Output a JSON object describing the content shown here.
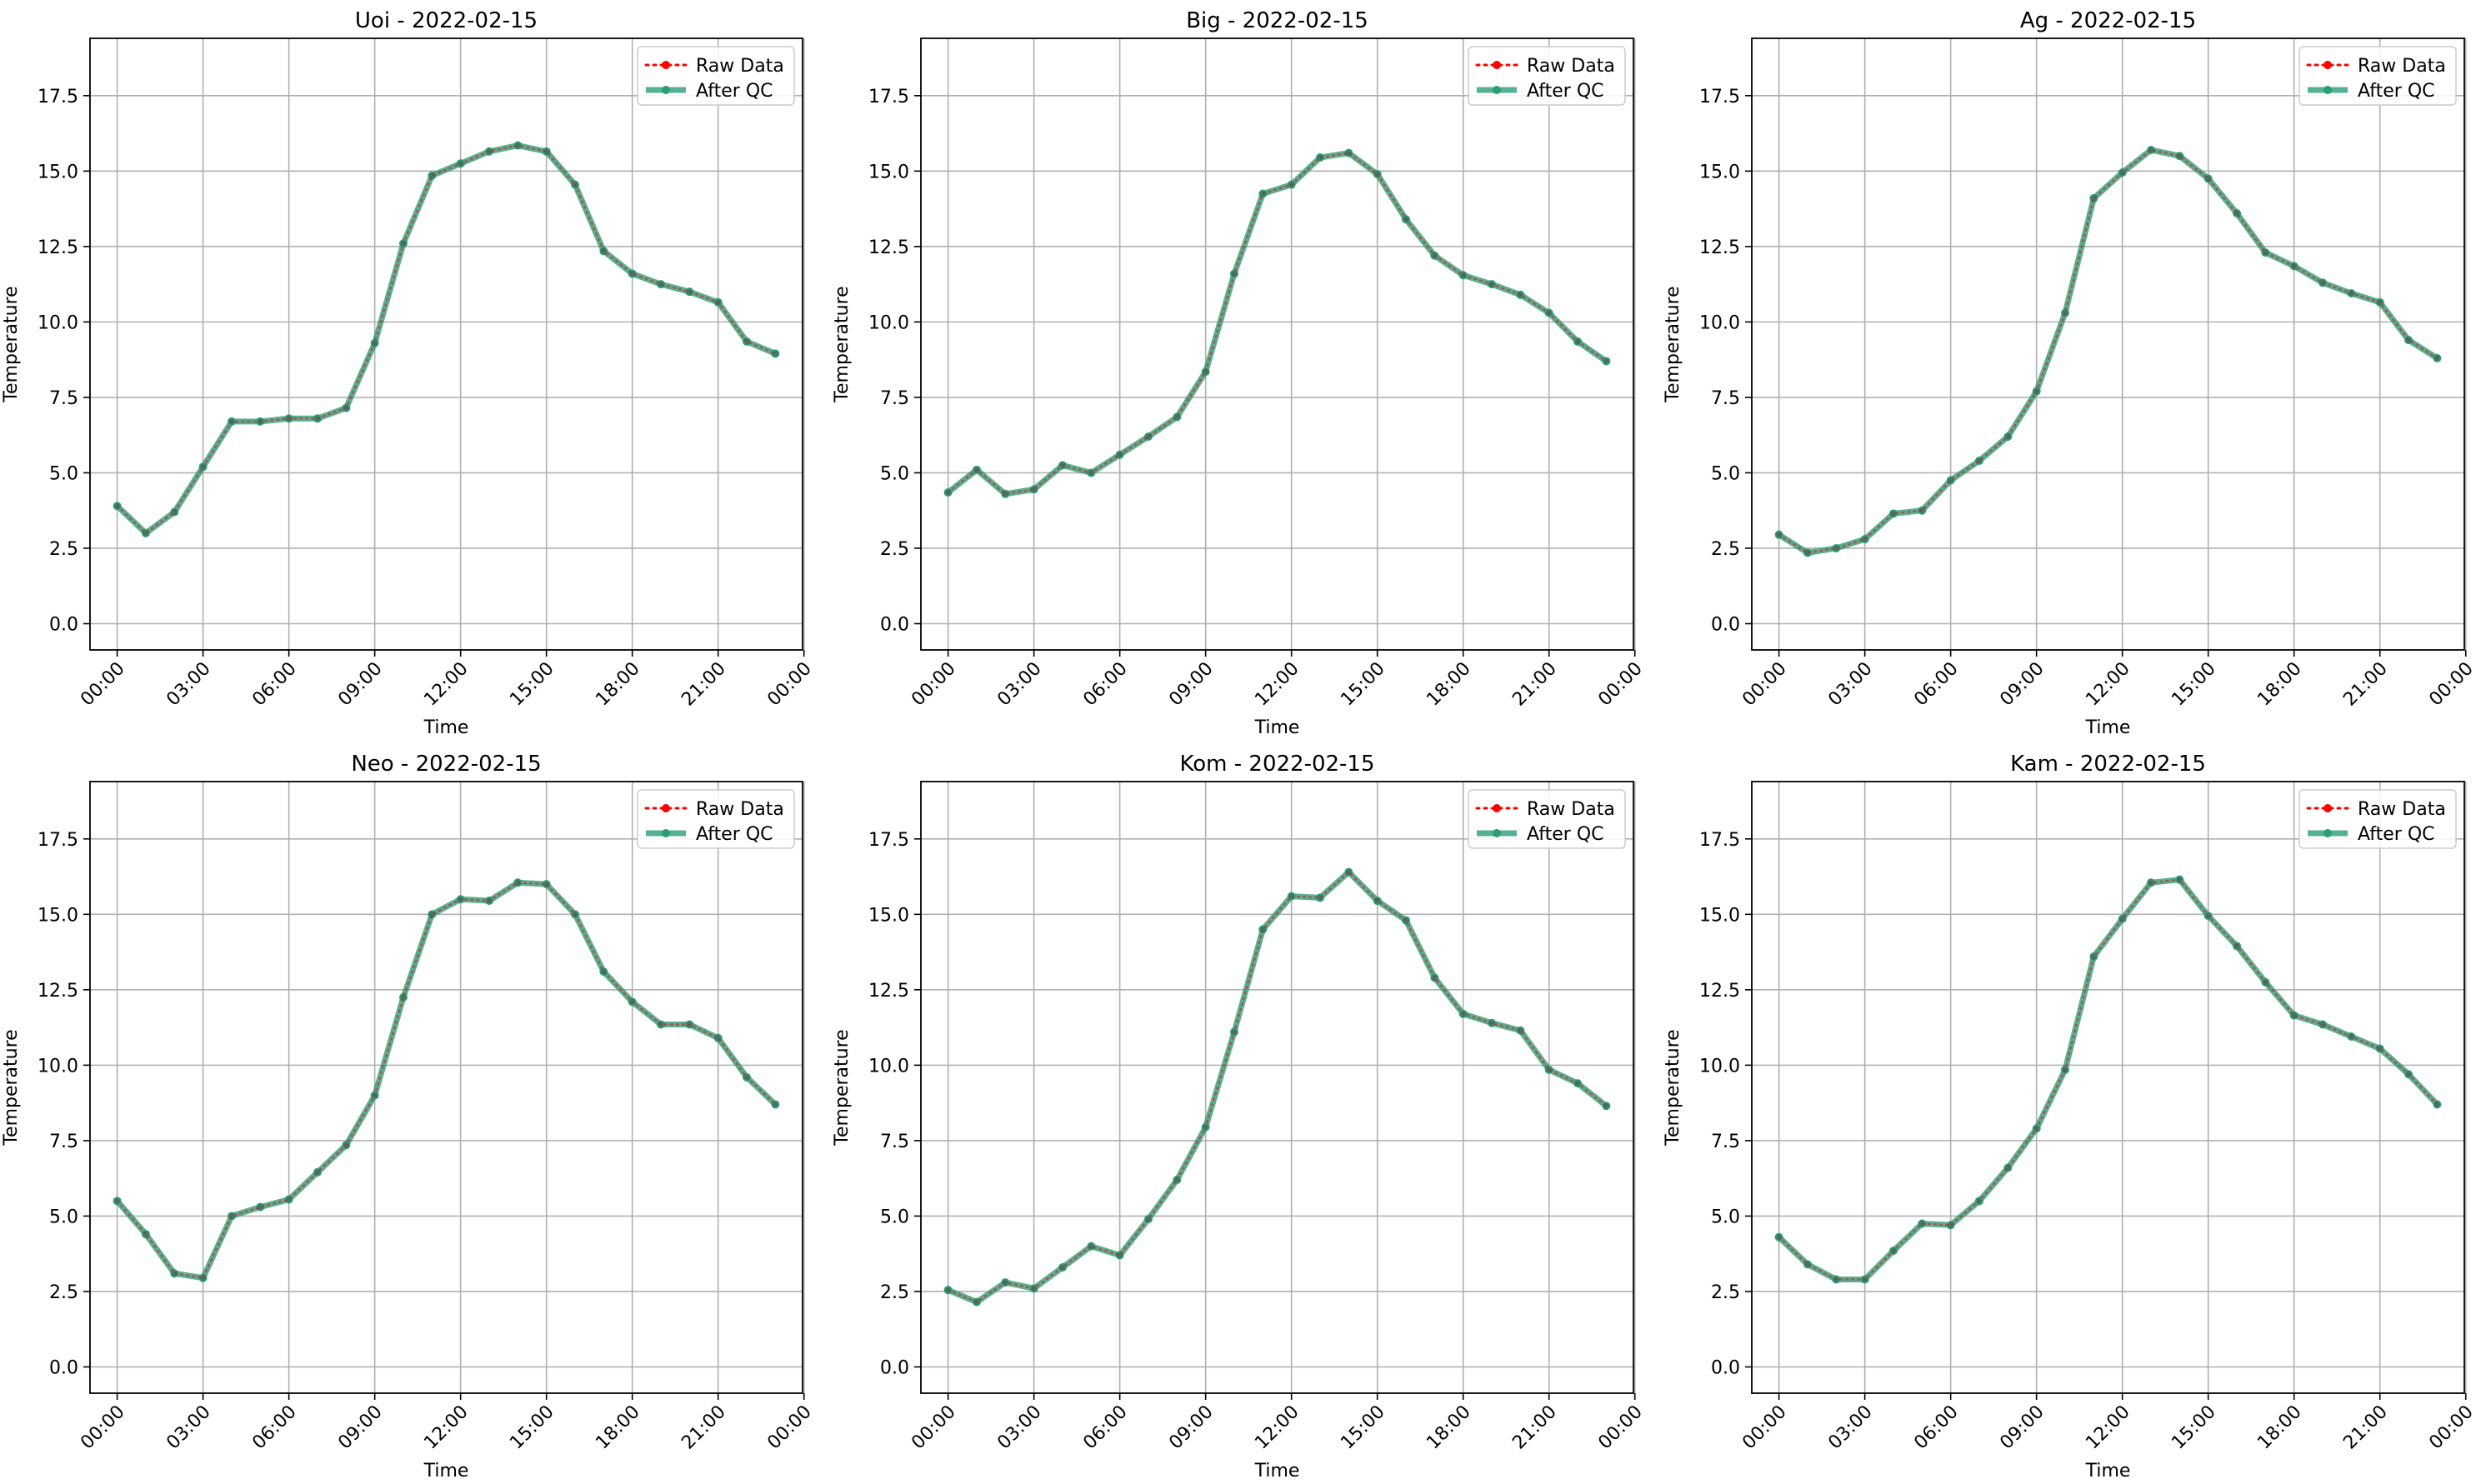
{
  "chart_data": [
    {
      "type": "line",
      "title": "Uoi - 2022-02-15",
      "xlabel": "Time",
      "ylabel": "Temperature",
      "ylim": [
        -0.87,
        19.4
      ],
      "xlim": [
        -0.95,
        23.95
      ],
      "x_ticks": [
        0,
        3,
        6,
        9,
        12,
        15,
        18,
        21,
        24
      ],
      "x_tick_labels": [
        "00:00",
        "03:00",
        "06:00",
        "09:00",
        "12:00",
        "15:00",
        "18:00",
        "21:00",
        "00:00"
      ],
      "y_ticks": [
        0,
        2.5,
        5,
        7.5,
        10,
        12.5,
        15,
        17.5
      ],
      "y_tick_labels": [
        "0.0",
        "2.5",
        "5.0",
        "7.5",
        "10.0",
        "12.5",
        "15.0",
        "17.5"
      ],
      "grid": true,
      "legend_position": "top-right",
      "x": [
        0,
        1,
        2,
        3,
        4,
        5,
        6,
        7,
        8,
        9,
        10,
        11,
        12,
        13,
        14,
        15,
        16,
        17,
        18,
        19,
        20,
        21,
        22,
        23
      ],
      "series": [
        {
          "name": "Raw Data",
          "style": "dotted-marker",
          "color": "#ff0000",
          "values": [
            3.9,
            3.0,
            3.7,
            5.2,
            6.7,
            6.7,
            6.8,
            6.8,
            7.15,
            9.3,
            12.6,
            14.85,
            15.25,
            15.65,
            15.85,
            15.65,
            14.55,
            12.35,
            11.6,
            11.25,
            11.0,
            10.65,
            9.35,
            8.95
          ]
        },
        {
          "name": "After QC",
          "style": "thick-line-marker",
          "color": "#2a9d77",
          "values": [
            3.9,
            3.0,
            3.7,
            5.2,
            6.7,
            6.7,
            6.8,
            6.8,
            7.15,
            9.3,
            12.6,
            14.85,
            15.25,
            15.65,
            15.85,
            15.65,
            14.55,
            12.35,
            11.6,
            11.25,
            11.0,
            10.65,
            9.35,
            8.95
          ]
        }
      ]
    },
    {
      "type": "line",
      "title": "Big - 2022-02-15",
      "xlabel": "Time",
      "ylabel": "Temperature",
      "ylim": [
        -0.87,
        19.4
      ],
      "xlim": [
        -0.95,
        23.95
      ],
      "x_ticks": [
        0,
        3,
        6,
        9,
        12,
        15,
        18,
        21,
        24
      ],
      "x_tick_labels": [
        "00:00",
        "03:00",
        "06:00",
        "09:00",
        "12:00",
        "15:00",
        "18:00",
        "21:00",
        "00:00"
      ],
      "y_ticks": [
        0,
        2.5,
        5,
        7.5,
        10,
        12.5,
        15,
        17.5
      ],
      "y_tick_labels": [
        "0.0",
        "2.5",
        "5.0",
        "7.5",
        "10.0",
        "12.5",
        "15.0",
        "17.5"
      ],
      "grid": true,
      "legend_position": "top-right",
      "x": [
        0,
        1,
        2,
        3,
        4,
        5,
        6,
        7,
        8,
        9,
        10,
        11,
        12,
        13,
        14,
        15,
        16,
        17,
        18,
        19,
        20,
        21,
        22,
        23
      ],
      "series": [
        {
          "name": "Raw Data",
          "style": "dotted-marker",
          "color": "#ff0000",
          "values": [
            4.35,
            5.1,
            4.3,
            4.45,
            5.25,
            5.0,
            5.6,
            6.2,
            6.85,
            8.35,
            11.6,
            14.25,
            14.55,
            15.45,
            15.6,
            14.9,
            13.4,
            12.2,
            11.55,
            11.25,
            10.9,
            10.3,
            9.35,
            8.7
          ]
        },
        {
          "name": "After QC",
          "style": "thick-line-marker",
          "color": "#2a9d77",
          "values": [
            4.35,
            5.1,
            4.3,
            4.45,
            5.25,
            5.0,
            5.6,
            6.2,
            6.85,
            8.35,
            11.6,
            14.25,
            14.55,
            15.45,
            15.6,
            14.9,
            13.4,
            12.2,
            11.55,
            11.25,
            10.9,
            10.3,
            9.35,
            8.7
          ]
        }
      ]
    },
    {
      "type": "line",
      "title": "Ag - 2022-02-15",
      "xlabel": "Time",
      "ylabel": "Temperature",
      "ylim": [
        -0.87,
        19.4
      ],
      "xlim": [
        -0.95,
        23.95
      ],
      "x_ticks": [
        0,
        3,
        6,
        9,
        12,
        15,
        18,
        21,
        24
      ],
      "x_tick_labels": [
        "00:00",
        "03:00",
        "06:00",
        "09:00",
        "12:00",
        "15:00",
        "18:00",
        "21:00",
        "00:00"
      ],
      "y_ticks": [
        0,
        2.5,
        5,
        7.5,
        10,
        12.5,
        15,
        17.5
      ],
      "y_tick_labels": [
        "0.0",
        "2.5",
        "5.0",
        "7.5",
        "10.0",
        "12.5",
        "15.0",
        "17.5"
      ],
      "grid": true,
      "legend_position": "top-right",
      "x": [
        0,
        1,
        2,
        3,
        4,
        5,
        6,
        7,
        8,
        9,
        10,
        11,
        12,
        13,
        14,
        15,
        16,
        17,
        18,
        19,
        20,
        21,
        22,
        23
      ],
      "series": [
        {
          "name": "Raw Data",
          "style": "dotted-marker",
          "color": "#ff0000",
          "values": [
            2.95,
            2.35,
            2.5,
            2.8,
            3.65,
            3.75,
            4.75,
            5.4,
            6.2,
            7.7,
            10.3,
            14.1,
            14.95,
            15.7,
            15.5,
            14.75,
            13.6,
            12.3,
            11.85,
            11.3,
            10.95,
            10.65,
            9.4,
            8.8
          ]
        },
        {
          "name": "After QC",
          "style": "thick-line-marker",
          "color": "#2a9d77",
          "values": [
            2.95,
            2.35,
            2.5,
            2.8,
            3.65,
            3.75,
            4.75,
            5.4,
            6.2,
            7.7,
            10.3,
            14.1,
            14.95,
            15.7,
            15.5,
            14.75,
            13.6,
            12.3,
            11.85,
            11.3,
            10.95,
            10.65,
            9.4,
            8.8
          ]
        }
      ]
    },
    {
      "type": "line",
      "title": "Neo - 2022-02-15",
      "xlabel": "Time",
      "ylabel": "Temperature",
      "ylim": [
        -0.87,
        19.4
      ],
      "xlim": [
        -0.95,
        23.95
      ],
      "x_ticks": [
        0,
        3,
        6,
        9,
        12,
        15,
        18,
        21,
        24
      ],
      "x_tick_labels": [
        "00:00",
        "03:00",
        "06:00",
        "09:00",
        "12:00",
        "15:00",
        "18:00",
        "21:00",
        "00:00"
      ],
      "y_ticks": [
        0,
        2.5,
        5,
        7.5,
        10,
        12.5,
        15,
        17.5
      ],
      "y_tick_labels": [
        "0.0",
        "2.5",
        "5.0",
        "7.5",
        "10.0",
        "12.5",
        "15.0",
        "17.5"
      ],
      "grid": true,
      "legend_position": "top-right",
      "x": [
        0,
        1,
        2,
        3,
        4,
        5,
        6,
        7,
        8,
        9,
        10,
        11,
        12,
        13,
        14,
        15,
        16,
        17,
        18,
        19,
        20,
        21,
        22,
        23
      ],
      "series": [
        {
          "name": "Raw Data",
          "style": "dotted-marker",
          "color": "#ff0000",
          "values": [
            5.5,
            4.4,
            3.1,
            2.95,
            5.0,
            5.3,
            5.55,
            6.45,
            7.35,
            9.0,
            12.25,
            15.0,
            15.5,
            15.45,
            16.05,
            16.0,
            15.0,
            13.1,
            12.1,
            11.35,
            11.35,
            10.9,
            9.6,
            8.7
          ]
        },
        {
          "name": "After QC",
          "style": "thick-line-marker",
          "color": "#2a9d77",
          "values": [
            5.5,
            4.4,
            3.1,
            2.95,
            5.0,
            5.3,
            5.55,
            6.45,
            7.35,
            9.0,
            12.25,
            15.0,
            15.5,
            15.45,
            16.05,
            16.0,
            15.0,
            13.1,
            12.1,
            11.35,
            11.35,
            10.9,
            9.6,
            8.7
          ]
        }
      ]
    },
    {
      "type": "line",
      "title": "Kom - 2022-02-15",
      "xlabel": "Time",
      "ylabel": "Temperature",
      "ylim": [
        -0.87,
        19.4
      ],
      "xlim": [
        -0.95,
        23.95
      ],
      "x_ticks": [
        0,
        3,
        6,
        9,
        12,
        15,
        18,
        21,
        24
      ],
      "x_tick_labels": [
        "00:00",
        "03:00",
        "06:00",
        "09:00",
        "12:00",
        "15:00",
        "18:00",
        "21:00",
        "00:00"
      ],
      "y_ticks": [
        0,
        2.5,
        5,
        7.5,
        10,
        12.5,
        15,
        17.5
      ],
      "y_tick_labels": [
        "0.0",
        "2.5",
        "5.0",
        "7.5",
        "10.0",
        "12.5",
        "15.0",
        "17.5"
      ],
      "grid": true,
      "legend_position": "top-right",
      "x": [
        0,
        1,
        2,
        3,
        4,
        5,
        6,
        7,
        8,
        9,
        10,
        11,
        12,
        13,
        14,
        15,
        16,
        17,
        18,
        19,
        20,
        21,
        22,
        23
      ],
      "series": [
        {
          "name": "Raw Data",
          "style": "dotted-marker",
          "color": "#ff0000",
          "values": [
            2.55,
            2.15,
            2.8,
            2.6,
            3.3,
            4.0,
            3.7,
            4.9,
            6.2,
            7.95,
            11.1,
            14.5,
            15.6,
            15.55,
            16.4,
            15.45,
            14.8,
            12.9,
            11.7,
            11.4,
            11.15,
            9.85,
            9.4,
            8.65
          ]
        },
        {
          "name": "After QC",
          "style": "thick-line-marker",
          "color": "#2a9d77",
          "values": [
            2.55,
            2.15,
            2.8,
            2.6,
            3.3,
            4.0,
            3.7,
            4.9,
            6.2,
            7.95,
            11.1,
            14.5,
            15.6,
            15.55,
            16.4,
            15.45,
            14.8,
            12.9,
            11.7,
            11.4,
            11.15,
            9.85,
            9.4,
            8.65
          ]
        }
      ]
    },
    {
      "type": "line",
      "title": "Kam - 2022-02-15",
      "xlabel": "Time",
      "ylabel": "Temperature",
      "ylim": [
        -0.87,
        19.4
      ],
      "xlim": [
        -0.95,
        23.95
      ],
      "x_ticks": [
        0,
        3,
        6,
        9,
        12,
        15,
        18,
        21,
        24
      ],
      "x_tick_labels": [
        "00:00",
        "03:00",
        "06:00",
        "09:00",
        "12:00",
        "15:00",
        "18:00",
        "21:00",
        "00:00"
      ],
      "y_ticks": [
        0,
        2.5,
        5,
        7.5,
        10,
        12.5,
        15,
        17.5
      ],
      "y_tick_labels": [
        "0.0",
        "2.5",
        "5.0",
        "7.5",
        "10.0",
        "12.5",
        "15.0",
        "17.5"
      ],
      "grid": true,
      "legend_position": "top-right",
      "x": [
        0,
        1,
        2,
        3,
        4,
        5,
        6,
        7,
        8,
        9,
        10,
        11,
        12,
        13,
        14,
        15,
        16,
        17,
        18,
        19,
        20,
        21,
        22,
        23
      ],
      "series": [
        {
          "name": "Raw Data",
          "style": "dotted-marker",
          "color": "#ff0000",
          "values": [
            4.3,
            3.4,
            2.9,
            2.9,
            3.85,
            4.75,
            4.7,
            5.5,
            6.6,
            7.9,
            9.85,
            13.6,
            14.85,
            16.05,
            16.15,
            14.95,
            13.95,
            12.75,
            11.65,
            11.35,
            10.95,
            10.55,
            9.7,
            8.7
          ]
        },
        {
          "name": "After QC",
          "style": "thick-line-marker",
          "color": "#2a9d77",
          "values": [
            4.3,
            3.4,
            2.9,
            2.9,
            3.85,
            4.75,
            4.7,
            5.5,
            6.6,
            7.9,
            9.85,
            13.6,
            14.85,
            16.05,
            16.15,
            14.95,
            13.95,
            12.75,
            11.65,
            11.35,
            10.95,
            10.55,
            9.7,
            8.7
          ]
        }
      ]
    }
  ]
}
